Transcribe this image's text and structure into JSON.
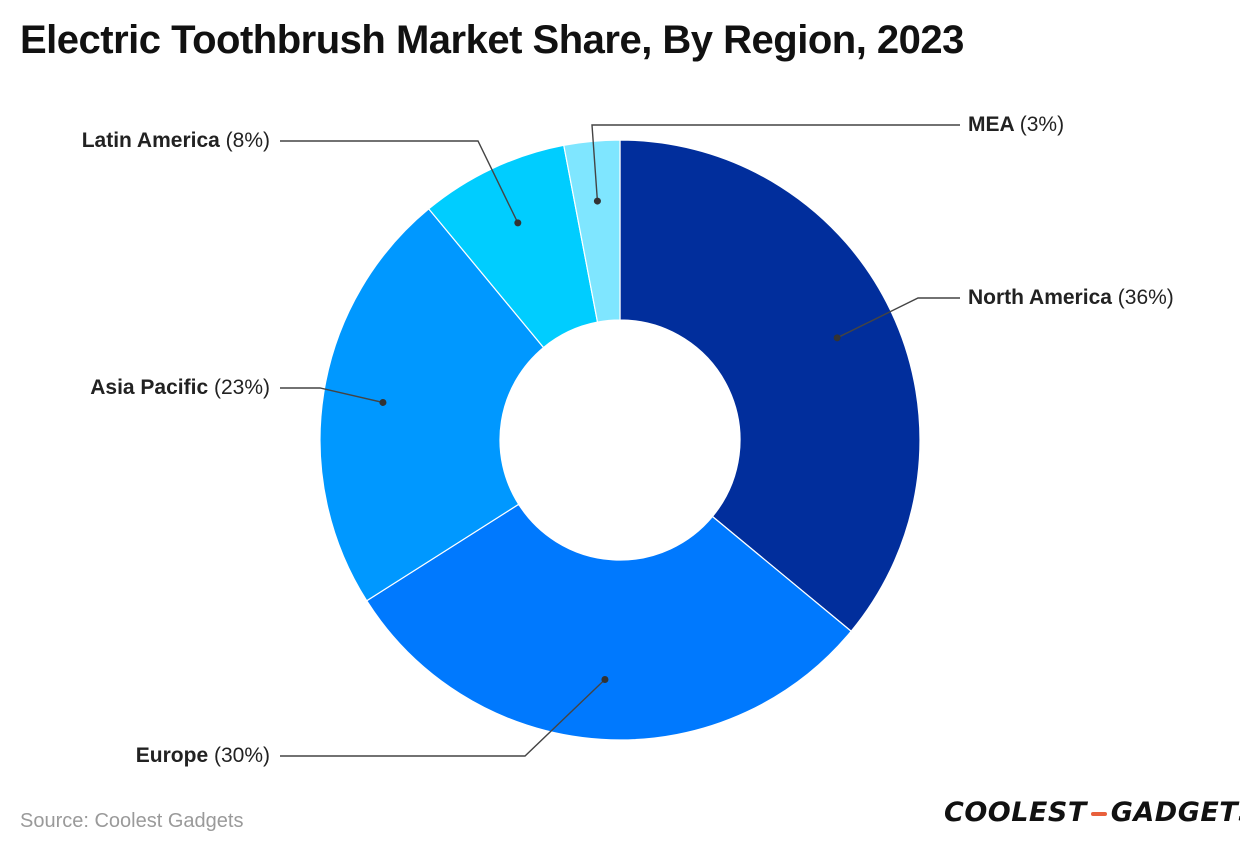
{
  "title": "Electric Toothbrush Market Share, By Region, 2023",
  "source": "Source: Coolest Gadgets",
  "brand": {
    "left": "COOLEST",
    "right": "GADGETS",
    "accent_color": "#e8603c"
  },
  "chart_data": {
    "type": "pie",
    "variant": "donut",
    "title": "Electric Toothbrush Market Share, By Region, 2023",
    "unit": "%",
    "slices": [
      {
        "label": "North America",
        "value": 36,
        "value_text": "(36%)",
        "color": "#012e9c"
      },
      {
        "label": "Europe",
        "value": 30,
        "value_text": "(30%)",
        "color": "#0079fe"
      },
      {
        "label": "Asia Pacific",
        "value": 23,
        "value_text": "(23%)",
        "color": "#0098ff"
      },
      {
        "label": "Latin America",
        "value": 8,
        "value_text": "(8%)",
        "color": "#00cdff"
      },
      {
        "label": "MEA",
        "value": 3,
        "value_text": "(3%)",
        "color": "#7fe6ff"
      }
    ]
  }
}
